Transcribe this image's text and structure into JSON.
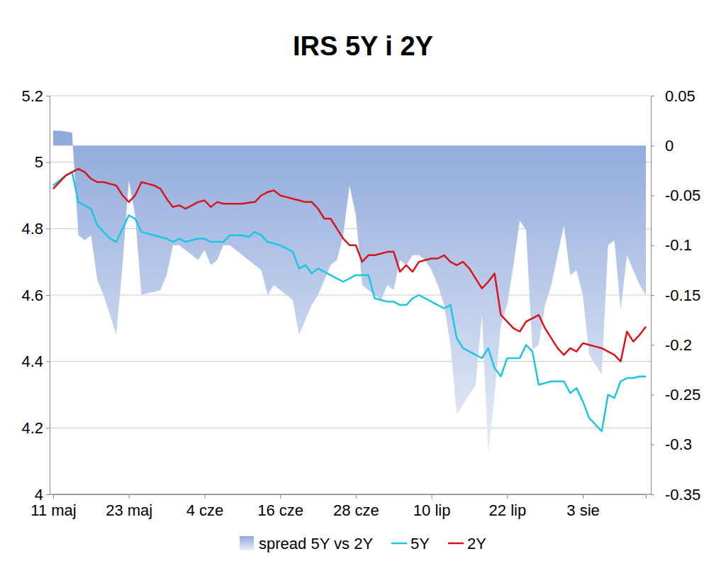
{
  "chart_data": {
    "type": "line",
    "title": "IRS 5Y i 2Y",
    "categories": [
      "11 maj",
      null,
      null,
      null,
      null,
      null,
      null,
      null,
      null,
      null,
      null,
      null,
      "23 maj",
      null,
      null,
      null,
      null,
      null,
      null,
      null,
      null,
      null,
      null,
      null,
      "4 cze",
      null,
      null,
      null,
      null,
      null,
      null,
      null,
      null,
      null,
      null,
      null,
      "16 cze",
      null,
      null,
      null,
      null,
      null,
      null,
      null,
      null,
      null,
      null,
      null,
      "28 cze",
      null,
      null,
      null,
      null,
      null,
      null,
      null,
      null,
      null,
      null,
      null,
      "10 lip",
      null,
      null,
      null,
      null,
      null,
      null,
      null,
      null,
      null,
      null,
      null,
      "22 lip",
      null,
      null,
      null,
      null,
      null,
      null,
      null,
      null,
      null,
      null,
      null,
      "3 sie",
      null,
      null,
      null,
      null,
      null,
      null,
      null,
      null,
      null,
      null
    ],
    "series": [
      {
        "name": "spread 5Y vs 2Y",
        "type": "area",
        "axis": "y2",
        "color": "#8fa9dc",
        "values": [
          0.015,
          0.015,
          0.014,
          0.013,
          -0.09,
          -0.095,
          -0.09,
          -0.135,
          -0.15,
          -0.17,
          -0.19,
          -0.12,
          -0.035,
          -0.07,
          -0.15,
          -0.148,
          -0.147,
          -0.145,
          -0.13,
          -0.1,
          -0.1,
          -0.105,
          -0.11,
          -0.115,
          -0.105,
          -0.12,
          -0.115,
          -0.1,
          -0.1,
          -0.105,
          -0.11,
          -0.115,
          -0.12,
          -0.125,
          -0.15,
          -0.14,
          -0.145,
          -0.15,
          -0.155,
          -0.19,
          -0.175,
          -0.16,
          -0.15,
          -0.135,
          -0.12,
          -0.115,
          -0.09,
          -0.04,
          -0.07,
          -0.14,
          -0.145,
          -0.15,
          -0.155,
          -0.14,
          -0.145,
          -0.115,
          -0.12,
          -0.11,
          -0.11,
          -0.115,
          -0.125,
          -0.14,
          -0.16,
          -0.2,
          -0.27,
          -0.26,
          -0.25,
          -0.24,
          -0.17,
          -0.31,
          -0.25,
          -0.18,
          -0.16,
          -0.12,
          -0.075,
          -0.085,
          -0.205,
          -0.2,
          -0.16,
          -0.14,
          -0.11,
          -0.08,
          -0.13,
          -0.125,
          -0.15,
          -0.21,
          -0.22,
          -0.23,
          -0.1,
          -0.095,
          -0.165,
          -0.11,
          -0.125,
          -0.14,
          -0.15
        ]
      },
      {
        "name": "5Y",
        "type": "line",
        "color": "#1ec6e6",
        "values": [
          4.93,
          4.945,
          4.96,
          4.97,
          4.88,
          4.87,
          4.86,
          4.81,
          4.79,
          4.77,
          4.76,
          4.8,
          4.84,
          4.83,
          4.79,
          4.785,
          4.78,
          4.775,
          4.77,
          4.76,
          4.77,
          4.76,
          4.765,
          4.77,
          4.77,
          4.76,
          4.76,
          4.76,
          4.78,
          4.78,
          4.78,
          4.775,
          4.79,
          4.78,
          4.76,
          4.755,
          4.75,
          4.74,
          4.73,
          4.68,
          4.69,
          4.665,
          4.68,
          4.67,
          4.66,
          4.65,
          4.64,
          4.65,
          4.66,
          4.66,
          4.66,
          4.59,
          4.585,
          4.58,
          4.58,
          4.57,
          4.57,
          4.59,
          4.6,
          4.59,
          4.58,
          4.57,
          4.56,
          4.57,
          4.47,
          4.44,
          4.43,
          4.42,
          4.41,
          4.44,
          4.38,
          4.355,
          4.41,
          4.41,
          4.41,
          4.45,
          4.43,
          4.33,
          4.335,
          4.34,
          4.34,
          4.34,
          4.305,
          4.32,
          4.28,
          4.23,
          4.21,
          4.19,
          4.3,
          4.29,
          4.34,
          4.35,
          4.35,
          4.355,
          4.355
        ]
      },
      {
        "name": "2Y",
        "type": "line",
        "color": "#d7161c",
        "values": [
          4.92,
          4.94,
          4.96,
          4.97,
          4.98,
          4.97,
          4.95,
          4.94,
          4.94,
          4.935,
          4.93,
          4.9,
          4.88,
          4.9,
          4.94,
          4.935,
          4.93,
          4.92,
          4.89,
          4.865,
          4.87,
          4.86,
          4.87,
          4.88,
          4.885,
          4.865,
          4.88,
          4.875,
          4.875,
          4.875,
          4.875,
          4.878,
          4.88,
          4.9,
          4.91,
          4.915,
          4.9,
          4.895,
          4.89,
          4.885,
          4.88,
          4.88,
          4.86,
          4.83,
          4.83,
          4.8,
          4.77,
          4.75,
          4.75,
          4.7,
          4.72,
          4.72,
          4.725,
          4.73,
          4.73,
          4.67,
          4.69,
          4.67,
          4.7,
          4.705,
          4.71,
          4.71,
          4.72,
          4.7,
          4.69,
          4.7,
          4.68,
          4.65,
          4.62,
          4.64,
          4.665,
          4.54,
          4.52,
          4.5,
          4.49,
          4.52,
          4.53,
          4.54,
          4.5,
          4.47,
          4.44,
          4.42,
          4.44,
          4.43,
          4.455,
          4.45,
          4.445,
          4.44,
          4.43,
          4.42,
          4.4,
          4.49,
          4.46,
          4.48,
          4.505
        ]
      }
    ],
    "ylim": [
      4,
      5.2
    ],
    "yticks": [
      4,
      4.2,
      4.4,
      4.6,
      4.8,
      5,
      5.2
    ],
    "y2lim": [
      -0.35,
      0.05
    ],
    "y2ticks": [
      -0.35,
      -0.3,
      -0.25,
      -0.2,
      -0.15,
      -0.1,
      -0.05,
      0,
      0.05
    ],
    "grid": true,
    "legend": "bottom"
  }
}
